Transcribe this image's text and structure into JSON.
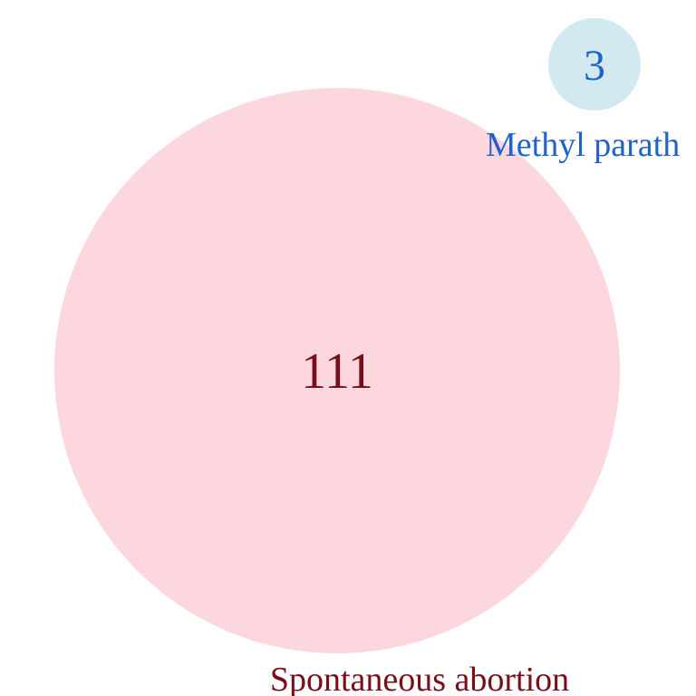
{
  "sets": [
    {
      "label": "Spontaneous abortion",
      "count": "111",
      "fill_color": "#fcd7de",
      "text_color": "#7a0e18"
    },
    {
      "label": "Methyl parath",
      "count": "3",
      "fill_color": "#d2e9f1",
      "text_color": "#1f62c8"
    }
  ]
}
